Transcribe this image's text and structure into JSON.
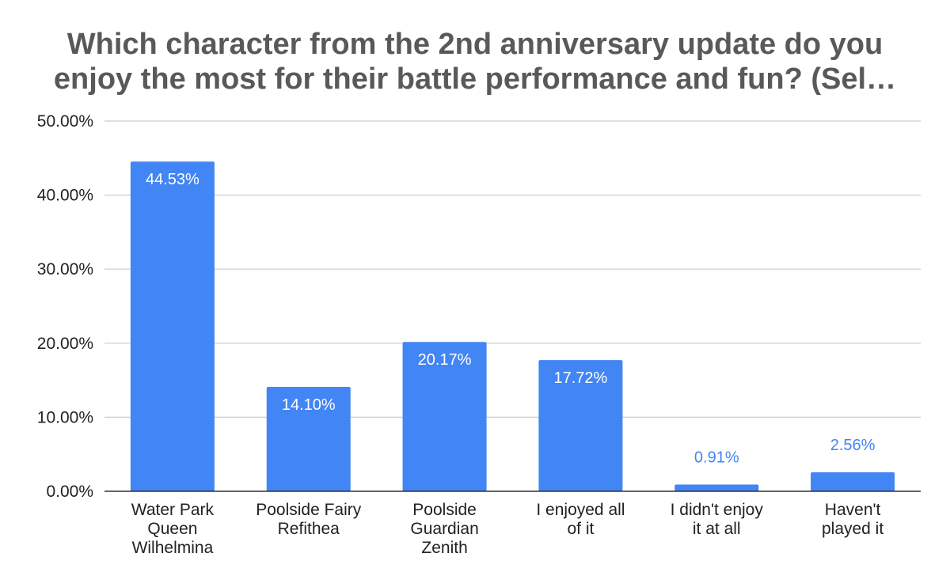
{
  "chart_data": {
    "type": "bar",
    "title_lines": [
      "Which character from the 2nd anniversary update do you",
      "enjoy the most for their battle performance and fun? (Sel…"
    ],
    "categories": [
      [
        "Water Park",
        "Queen",
        "Wilhelmina"
      ],
      [
        "Poolside Fairy",
        "Refithea"
      ],
      [
        "Poolside",
        "Guardian",
        "Zenith"
      ],
      [
        "I enjoyed all",
        "of it"
      ],
      [
        "I didn't enjoy",
        "it at all"
      ],
      [
        "Haven't",
        "played it"
      ]
    ],
    "values": [
      44.53,
      14.1,
      20.17,
      17.72,
      0.91,
      2.56
    ],
    "data_labels": [
      "44.53%",
      "14.10%",
      "20.17%",
      "17.72%",
      "0.91%",
      "2.56%"
    ],
    "y_ticks": [
      "0.00%",
      "10.00%",
      "20.00%",
      "30.00%",
      "40.00%",
      "50.00%"
    ],
    "ylim": [
      0,
      50
    ],
    "grid": true,
    "legend": "none",
    "bar_color": "#4285f4",
    "inside_label_color": "#ffffff",
    "outside_label_color": "#4285f4"
  }
}
